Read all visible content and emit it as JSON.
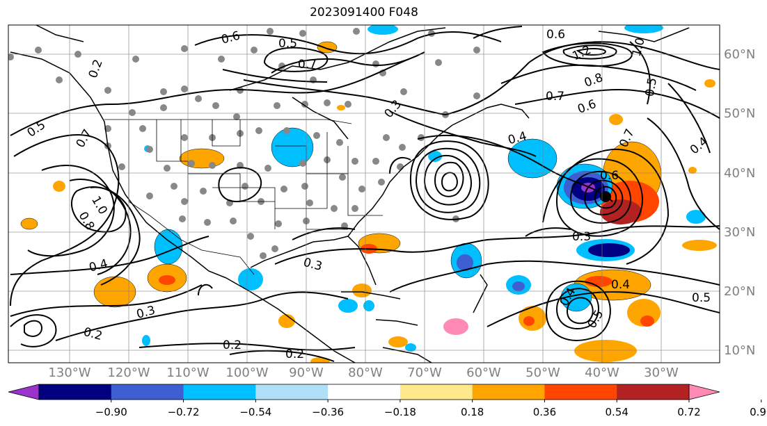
{
  "title": "2023091400 F048",
  "longitude_labels": [
    "130°W",
    "120°W",
    "110°W",
    "100°W",
    "90°W",
    "80°W",
    "70°W",
    "60°W",
    "50°W",
    "40°W",
    "30°W"
  ],
  "latitude_labels": [
    "60°N",
    "50°N",
    "40°N",
    "30°N",
    "20°N",
    "10°N"
  ],
  "colorbar": {
    "tick_labels": [
      "−0.90",
      "−0.72",
      "−0.54",
      "−0.36",
      "−0.18",
      "0.18",
      "0.36",
      "0.54",
      "0.72",
      "0.90"
    ],
    "colors": [
      "#9933cc",
      "#000080",
      "#3d5fd1",
      "#00bfff",
      "#b0e0f8",
      "#ffffff",
      "#ffe98a",
      "#ffa500",
      "#ff4500",
      "#b22222",
      "#ff8ab4"
    ]
  },
  "contour_labels": [
    "0.6",
    "0.5",
    "0.7",
    "0.2",
    "0.5",
    "0.7",
    "1.0",
    "0.8",
    "0.4",
    "0.3",
    "0.3",
    "0.2",
    "0.2",
    "0.3",
    "0.6",
    "0.8",
    "0.7",
    "0.6",
    "1.2",
    "1.0",
    "0.5",
    "0.7",
    "0.4",
    "0.6",
    "0.3",
    "0.4",
    "0.5",
    "0.4",
    "0.5",
    "0.4",
    "0.2"
  ]
}
